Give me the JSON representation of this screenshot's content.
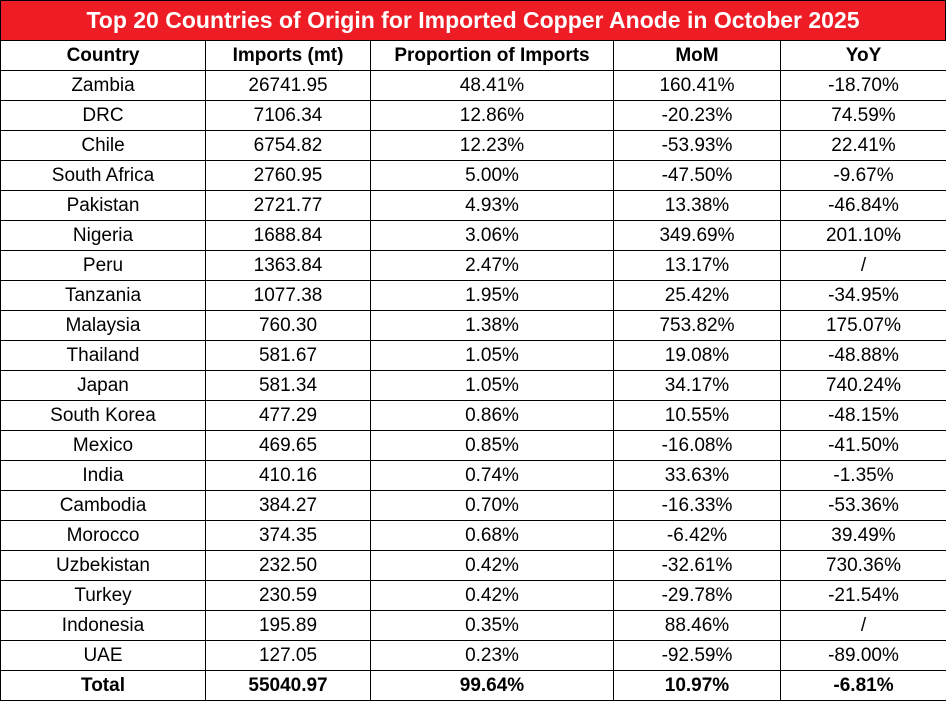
{
  "title": "Top 20 Countries of Origin for Imported Copper Anode in October 2025",
  "table": {
    "columns": [
      "Country",
      "Imports (mt)",
      "Proportion of Imports",
      "MoM",
      "YoY"
    ],
    "rows": [
      [
        "Zambia",
        "26741.95",
        "48.41%",
        "160.41%",
        "-18.70%"
      ],
      [
        "DRC",
        "7106.34",
        "12.86%",
        "-20.23%",
        "74.59%"
      ],
      [
        "Chile",
        "6754.82",
        "12.23%",
        "-53.93%",
        "22.41%"
      ],
      [
        "South Africa",
        "2760.95",
        "5.00%",
        "-47.50%",
        "-9.67%"
      ],
      [
        "Pakistan",
        "2721.77",
        "4.93%",
        "13.38%",
        "-46.84%"
      ],
      [
        "Nigeria",
        "1688.84",
        "3.06%",
        "349.69%",
        "201.10%"
      ],
      [
        "Peru",
        "1363.84",
        "2.47%",
        "13.17%",
        "/"
      ],
      [
        "Tanzania",
        "1077.38",
        "1.95%",
        "25.42%",
        "-34.95%"
      ],
      [
        "Malaysia",
        "760.30",
        "1.38%",
        "753.82%",
        "175.07%"
      ],
      [
        "Thailand",
        "581.67",
        "1.05%",
        "19.08%",
        "-48.88%"
      ],
      [
        "Japan",
        "581.34",
        "1.05%",
        "34.17%",
        "740.24%"
      ],
      [
        "South Korea",
        "477.29",
        "0.86%",
        "10.55%",
        "-48.15%"
      ],
      [
        "Mexico",
        "469.65",
        "0.85%",
        "-16.08%",
        "-41.50%"
      ],
      [
        "India",
        "410.16",
        "0.74%",
        "33.63%",
        "-1.35%"
      ],
      [
        "Cambodia",
        "384.27",
        "0.70%",
        "-16.33%",
        "-53.36%"
      ],
      [
        "Morocco",
        "374.35",
        "0.68%",
        "-6.42%",
        "39.49%"
      ],
      [
        "Uzbekistan",
        "232.50",
        "0.42%",
        "-32.61%",
        "730.36%"
      ],
      [
        "Turkey",
        "230.59",
        "0.42%",
        "-29.78%",
        "-21.54%"
      ],
      [
        "Indonesia",
        "195.89",
        "0.35%",
        "88.46%",
        "/"
      ],
      [
        "UAE",
        "127.05",
        "0.23%",
        "-92.59%",
        "-89.00%"
      ]
    ],
    "total": [
      "Total",
      "55040.97",
      "99.64%",
      "10.97%",
      "-6.81%"
    ]
  }
}
